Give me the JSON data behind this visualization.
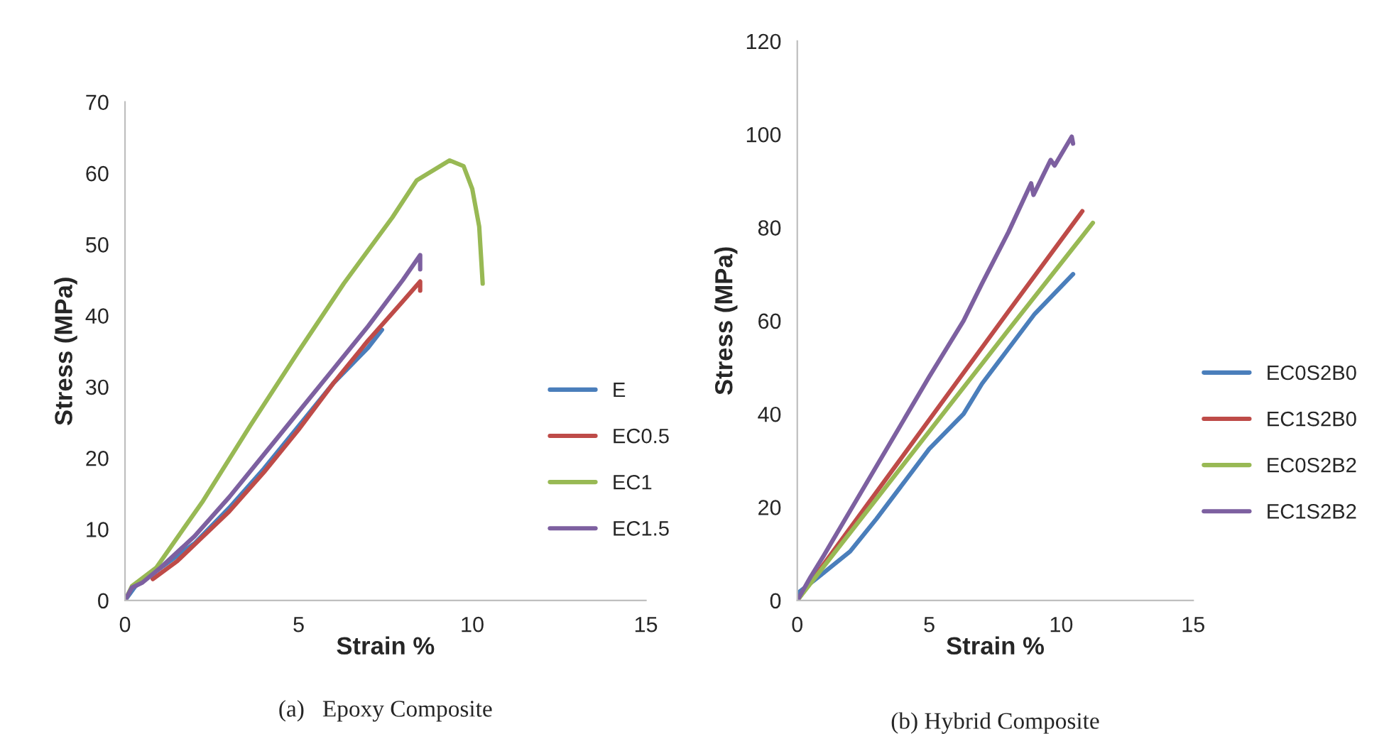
{
  "chart_data": [
    {
      "type": "line",
      "title": "(a)   Epoxy Composite",
      "xlabel": "Strain %",
      "ylabel": "Stress (MPa)",
      "xlim": [
        0,
        15
      ],
      "xticks": [
        0,
        5,
        10,
        15
      ],
      "ylim": [
        0,
        70
      ],
      "yticks": [
        0,
        10,
        20,
        30,
        40,
        50,
        60,
        70
      ],
      "grid": false,
      "legend": "right",
      "marker": "none",
      "line_style": "solid",
      "series": [
        {
          "name": "E",
          "color": "#4a7ebb",
          "x": [
            0,
            0.3,
            1,
            2,
            3,
            4,
            5,
            6,
            6.6,
            7.0,
            7.4
          ],
          "values": [
            0,
            2,
            4.5,
            8,
            13,
            18.5,
            24.5,
            30.5,
            33.5,
            35.5,
            38
          ]
        },
        {
          "name": "EC0.5",
          "color": "#be4b48",
          "x": [
            0.8,
            1.5,
            3,
            4,
            5,
            6,
            7,
            8,
            8.5,
            8.5
          ],
          "values": [
            3,
            5.5,
            12.5,
            18,
            24,
            30.5,
            36.5,
            42,
            44.8,
            43.5
          ]
        },
        {
          "name": "EC1",
          "color": "#98b954",
          "x": [
            0,
            0.2,
            0.9,
            2.25,
            3.6,
            5.0,
            6.3,
            7.7,
            8.4,
            9.35,
            9.75,
            10.0,
            10.2,
            10.3
          ],
          "values": [
            0,
            2,
            4.6,
            14,
            24.5,
            35,
            44.5,
            53.8,
            59,
            61.8,
            61,
            57.8,
            52.5,
            44.5
          ]
        },
        {
          "name": "EC1.5",
          "color": "#7d60a0",
          "x": [
            0,
            0.2,
            0.5,
            1,
            2,
            3,
            4,
            5,
            6,
            7,
            8,
            8.5,
            8.5
          ],
          "values": [
            0,
            1.8,
            2.5,
            4.5,
            9,
            14.5,
            20.5,
            26.5,
            32.5,
            38.5,
            45,
            48.5,
            46.5
          ]
        }
      ]
    },
    {
      "type": "line",
      "title": "(b) Hybrid Composite",
      "xlabel": "Strain %",
      "ylabel": "Stress (MPa)",
      "xlim": [
        0,
        15
      ],
      "xticks": [
        0,
        5,
        10,
        15
      ],
      "ylim": [
        0,
        120
      ],
      "yticks": [
        0,
        20,
        40,
        60,
        80,
        100,
        120
      ],
      "grid": false,
      "legend": "right",
      "marker": "none",
      "line_style": "solid",
      "series": [
        {
          "name": "EC0S2B0",
          "color": "#4a7ebb",
          "x": [
            0,
            0.75,
            2,
            3,
            4,
            5,
            6.3,
            7,
            8,
            9,
            10.45
          ],
          "values": [
            1.5,
            4.8,
            10.5,
            17.5,
            25,
            32.5,
            40,
            46.5,
            54,
            61.5,
            70
          ]
        },
        {
          "name": "EC1S2B0",
          "color": "#be4b48",
          "x": [
            0,
            2,
            4,
            6,
            8,
            10.8
          ],
          "values": [
            0,
            15.5,
            31,
            46.5,
            62,
            83.5
          ]
        },
        {
          "name": "EC0S2B2",
          "color": "#98b954",
          "x": [
            0,
            2,
            4,
            6,
            8,
            11.2
          ],
          "values": [
            0,
            14.5,
            29,
            43.5,
            58,
            81
          ]
        },
        {
          "name": "EC1S2B2",
          "color": "#7d60a0",
          "x": [
            0,
            0.5,
            1,
            2,
            3,
            4,
            5,
            6.3,
            7,
            8,
            8.86,
            8.95,
            9.6,
            9.75,
            10.4,
            10.45
          ],
          "values": [
            0,
            5,
            9.6,
            19.2,
            28.8,
            38.4,
            48,
            60,
            68,
            79,
            89.5,
            87,
            94.5,
            93.3,
            99.5,
            98
          ]
        }
      ]
    }
  ]
}
